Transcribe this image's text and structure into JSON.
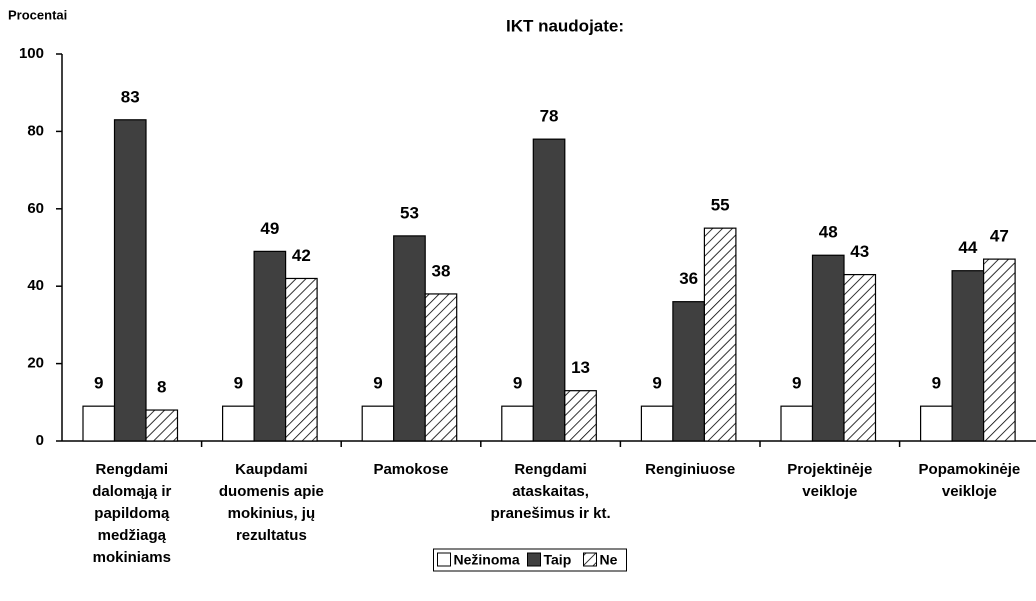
{
  "chart_data": {
    "type": "bar",
    "title": "IKT naudojate:",
    "y_label": "Procentai",
    "categories": [
      "Rengdami dalomąją ir papildomą medžiagą mokiniams",
      "Kaupdami duomenis apie mokinius, jų rezultatus",
      "Pamokose",
      "Rengdami ataskaitas, pranešimus ir kt.",
      "Renginiuose",
      "Projektinėje veikloje",
      "Popamokinėje veikloje"
    ],
    "series": [
      {
        "name": "Nežinoma",
        "color": "#ffffff",
        "values": [
          9,
          9,
          9,
          9,
          9,
          9,
          9
        ]
      },
      {
        "name": "Taip",
        "color": "#404040",
        "values": [
          83,
          49,
          53,
          78,
          36,
          48,
          44
        ]
      },
      {
        "name": "Ne",
        "color": "#ffffff",
        "pattern": "hatch",
        "values": [
          8,
          42,
          38,
          13,
          55,
          43,
          47
        ]
      }
    ],
    "ylim": [
      0,
      100
    ],
    "yticks": [
      0,
      20,
      40,
      60,
      80,
      100
    ],
    "legend": "bottom"
  }
}
